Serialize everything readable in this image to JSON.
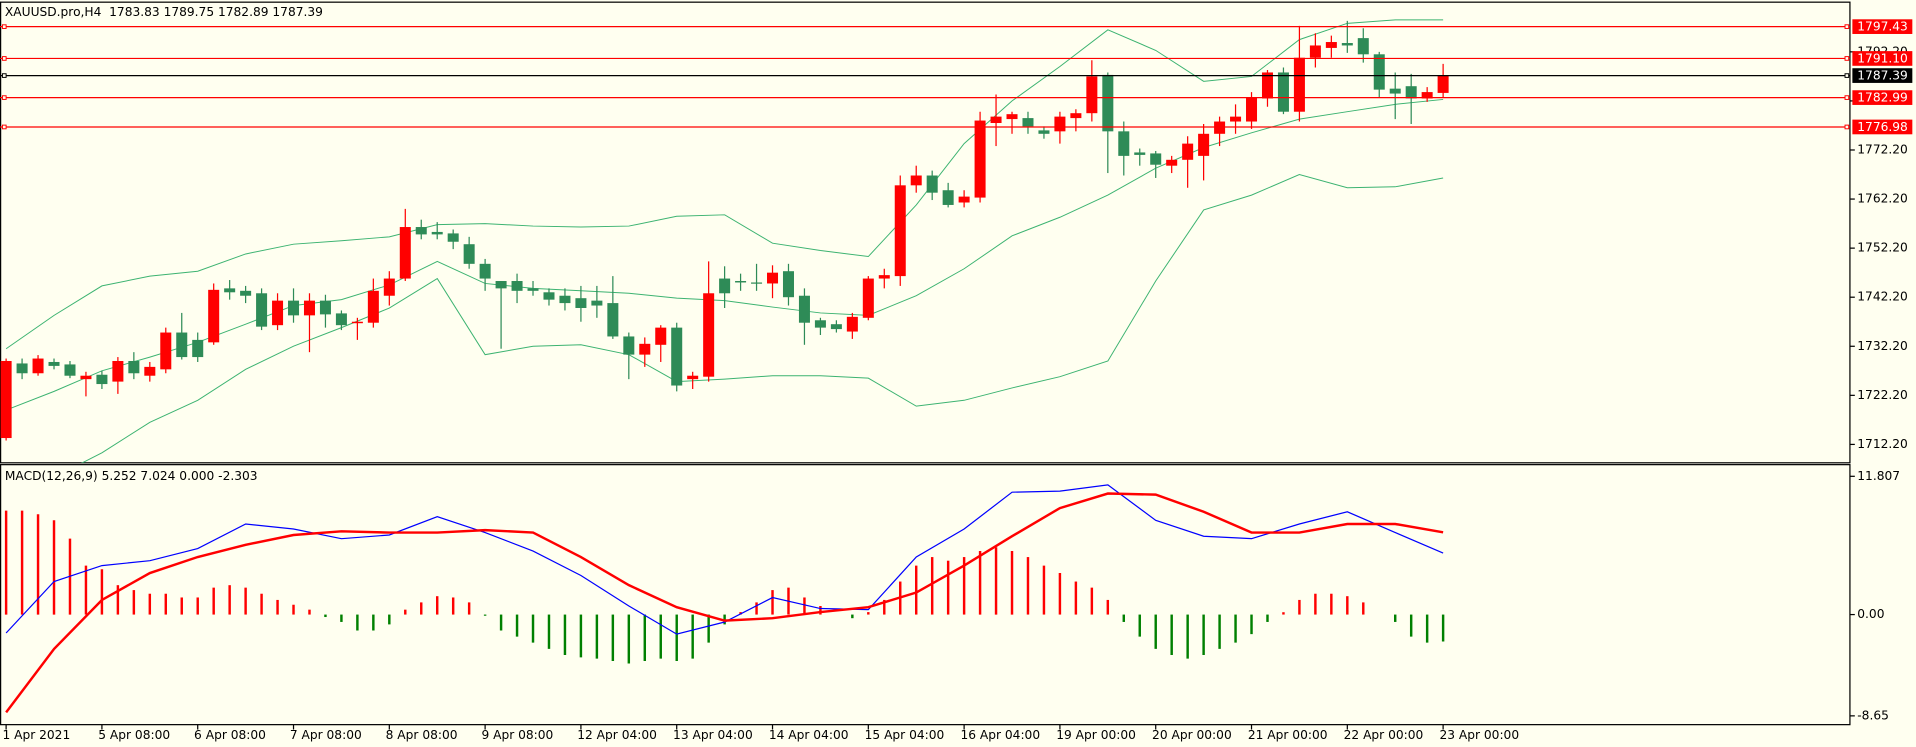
{
  "chart_data": [
    {
      "type": "candlestick",
      "title": "XAUUSD.pro,H4  1783.83 1789.75 1782.89 1787.39",
      "categories": [
        "1 Apr 2021",
        null,
        null,
        null,
        null,
        null,
        "5 Apr 08:00",
        null,
        null,
        null,
        null,
        null,
        "6 Apr 08:00",
        null,
        null,
        null,
        null,
        null,
        "7 Apr 08:00",
        null,
        null,
        null,
        null,
        null,
        "8 Apr 08:00",
        null,
        null,
        null,
        null,
        null,
        "9 Apr 08:00",
        null,
        null,
        null,
        null,
        null,
        "12 Apr 04:00",
        null,
        null,
        null,
        null,
        null,
        "13 Apr 04:00",
        null,
        null,
        null,
        null,
        null,
        "14 Apr 04:00",
        null,
        null,
        null,
        null,
        null,
        "15 Apr 04:00",
        null,
        null,
        null,
        null,
        null,
        "16 Apr 04:00",
        null,
        null,
        null,
        null,
        null,
        "19 Apr 00:00",
        null,
        null,
        null,
        null,
        null,
        "20 Apr 00:00",
        null,
        null,
        null,
        null,
        null,
        "21 Apr 00:00",
        null,
        null,
        null,
        null,
        null,
        "22 Apr 00:00",
        null,
        null,
        null,
        null,
        null,
        "23 Apr 00:00"
      ],
      "open": [
        1713.5,
        1728.7,
        1726.7,
        1729.0,
        1728.5,
        1725.5,
        1726.4,
        1725.0,
        1729.2,
        1726.2,
        1727.5,
        1735.0,
        1733.5,
        1733.0,
        1744.0,
        1743.5,
        1743.0,
        1736.5,
        1741.5,
        1738.5,
        1741.5,
        1738.9,
        1736.9,
        1737.0,
        1742.5,
        1746.0,
        1756.5,
        1755.5,
        1755.2,
        1753.0,
        1749.0,
        1745.5,
        1745.5,
        1744.0,
        1743.2,
        1742.5,
        1742.0,
        1741.5,
        1741.0,
        1734.2,
        1730.5,
        1732.5,
        1736.0,
        1725.5,
        1726.0,
        1746.0,
        1745.5,
        1745.2,
        1745.0,
        1747.5,
        1742.5,
        1737.5,
        1736.7,
        1735.2,
        1738.0,
        1746.0,
        1746.5,
        1765.0,
        1767.0,
        1764.0,
        1761.5,
        1762.5,
        1777.7,
        1778.5,
        1778.7,
        1776.2,
        1776.0,
        1778.7,
        1779.7,
        1787.5,
        1776.0,
        1771.7,
        1771.5,
        1769.0,
        1770.2,
        1771.0,
        1775.5,
        1778.0,
        1778.0,
        1782.7,
        1788.0,
        1780.0,
        1791.0,
        1793.0,
        1794.0,
        1795.0,
        1791.7,
        1784.7,
        1785.2,
        1782.7,
        1783.83
      ],
      "high": [
        1729.7,
        1729.7,
        1730.4,
        1729.7,
        1729.2,
        1727.0,
        1727.2,
        1730.0,
        1731.0,
        1729.0,
        1736.0,
        1739.0,
        1735.0,
        1745.0,
        1745.7,
        1744.5,
        1744.0,
        1743.0,
        1744.0,
        1743.0,
        1742.7,
        1739.5,
        1738.0,
        1746.0,
        1747.5,
        1760.2,
        1758.0,
        1757.5,
        1756.0,
        1754.5,
        1750.0,
        1745.5,
        1747.0,
        1745.5,
        1744.0,
        1744.0,
        1744.5,
        1744.5,
        1746.5,
        1735.0,
        1734.0,
        1736.5,
        1737.0,
        1727.0,
        1749.5,
        1748.5,
        1747.0,
        1749.0,
        1748.7,
        1749.0,
        1744.0,
        1738.0,
        1737.5,
        1739.0,
        1746.5,
        1748.0,
        1767.0,
        1769.0,
        1768.0,
        1765.5,
        1764.0,
        1780.0,
        1783.5,
        1780.0,
        1780.0,
        1777.0,
        1780.0,
        1780.5,
        1790.5,
        1788.0,
        1778.0,
        1772.5,
        1772.0,
        1771.0,
        1775.0,
        1777.5,
        1779.0,
        1781.5,
        1784.0,
        1788.5,
        1789.0,
        1797.5,
        1796.0,
        1795.5,
        1798.5,
        1797.0,
        1792.2,
        1788.0,
        1787.7,
        1785.0,
        1789.75
      ],
      "low": [
        1713.0,
        1725.5,
        1726.2,
        1727.5,
        1725.7,
        1722.0,
        1723.5,
        1722.5,
        1725.5,
        1725.0,
        1726.7,
        1729.5,
        1729.0,
        1732.5,
        1741.7,
        1741.0,
        1735.5,
        1735.5,
        1737.0,
        1731.0,
        1736.0,
        1735.5,
        1733.5,
        1736.0,
        1740.5,
        1745.5,
        1754.0,
        1754.0,
        1752.0,
        1748.0,
        1743.5,
        1731.7,
        1741.0,
        1742.5,
        1740.5,
        1739.5,
        1737.2,
        1738.0,
        1733.7,
        1725.5,
        1728.0,
        1729.0,
        1723.0,
        1723.5,
        1725.0,
        1740.0,
        1743.5,
        1743.5,
        1742.0,
        1740.5,
        1732.5,
        1734.5,
        1735.0,
        1733.7,
        1737.5,
        1744.0,
        1744.5,
        1763.5,
        1762.0,
        1760.5,
        1760.5,
        1761.5,
        1773.0,
        1775.5,
        1775.5,
        1774.5,
        1773.5,
        1776.0,
        1778.0,
        1767.5,
        1767.0,
        1769.0,
        1766.5,
        1767.5,
        1764.5,
        1766.0,
        1773.0,
        1775.5,
        1776.5,
        1781.0,
        1779.5,
        1778.0,
        1789.0,
        1791.0,
        1792.0,
        1790.0,
        1783.0,
        1778.5,
        1777.5,
        1782.0,
        1782.89
      ],
      "close": [
        1729.2,
        1726.7,
        1729.7,
        1728.2,
        1726.2,
        1726.2,
        1724.5,
        1729.2,
        1726.7,
        1728.0,
        1735.0,
        1730.0,
        1730.0,
        1743.7,
        1743.2,
        1742.5,
        1736.2,
        1741.5,
        1738.5,
        1741.5,
        1738.7,
        1736.5,
        1737.2,
        1743.5,
        1746.0,
        1756.5,
        1755.0,
        1755.0,
        1753.5,
        1749.0,
        1746.0,
        1744.0,
        1743.5,
        1743.5,
        1741.7,
        1741.0,
        1740.0,
        1740.5,
        1734.2,
        1730.5,
        1732.7,
        1736.0,
        1724.2,
        1726.2,
        1743.0,
        1743.0,
        1745.2,
        1745.0,
        1747.2,
        1742.2,
        1737.0,
        1736.0,
        1735.7,
        1738.2,
        1746.0,
        1746.7,
        1765.0,
        1767.0,
        1763.5,
        1761.0,
        1762.7,
        1778.2,
        1779.0,
        1779.5,
        1777.0,
        1775.5,
        1779.0,
        1779.7,
        1787.2,
        1776.0,
        1771.0,
        1771.2,
        1769.2,
        1770.2,
        1773.5,
        1775.5,
        1778.0,
        1779.0,
        1783.0,
        1788.0,
        1780.0,
        1791.0,
        1793.5,
        1794.2,
        1793.5,
        1791.7,
        1784.5,
        1783.7,
        1782.7,
        1784.0,
        1787.39
      ],
      "up_color": "#ff0000",
      "down_color": "#2e8b57",
      "band_x": [
        0,
        3,
        6,
        9,
        12,
        15,
        18,
        21,
        24,
        27,
        30,
        33,
        36,
        39,
        42,
        45,
        48,
        51,
        54,
        57,
        60,
        63,
        66,
        69,
        72,
        75,
        78,
        81,
        84,
        87,
        90
      ],
      "band_color": "#3cb371",
      "bands": [
        [
          1731.7,
          1738.5,
          1744.5,
          1746.5,
          1747.5,
          1751.0,
          1753.0,
          1753.7,
          1754.5,
          1757.0,
          1757.2,
          1756.7,
          1756.5,
          1756.7,
          1758.7,
          1759.0,
          1753.2,
          1751.7,
          1750.5,
          1761.0,
          1773.5,
          1782.2,
          1789.2,
          1796.7,
          1792.5,
          1786.2,
          1787.2,
          1794.7,
          1798.0,
          1798.7,
          1798.7
        ],
        [
          1719.2,
          1723.0,
          1727.2,
          1730.0,
          1733.0,
          1736.7,
          1740.5,
          1741.7,
          1744.7,
          1749.5,
          1745.0,
          1744.0,
          1743.5,
          1743.0,
          1742.0,
          1741.5,
          1740.2,
          1739.0,
          1738.5,
          1742.5,
          1748.0,
          1754.7,
          1758.5,
          1763.0,
          1768.5,
          1772.7,
          1775.7,
          1778.5,
          1780.0,
          1781.5,
          1782.5
        ],
        [
          1706.7,
          1705.5,
          1710.5,
          1716.7,
          1721.2,
          1727.5,
          1732.2,
          1736.0,
          1740.0,
          1746.0,
          1730.5,
          1732.2,
          1732.5,
          1730.5,
          1725.0,
          1725.5,
          1726.2,
          1726.2,
          1725.7,
          1720.0,
          1721.2,
          1723.7,
          1726.0,
          1729.2,
          1745.5,
          1760.0,
          1763.0,
          1767.2,
          1764.5,
          1764.7,
          1766.5
        ]
      ],
      "hlines": [
        1797.43,
        {
          "value": 1791.1,
          "label": "1791.10"
        },
        1787.39,
        1782.99,
        1776.98
      ],
      "hline_colors": [
        "#ff0000",
        "#ff0000",
        "#000000",
        "#ff0000",
        "#ff0000"
      ],
      "ylim": [
        1708.45,
        1802.2
      ],
      "yticks": [
        {
          "value": 1712.2,
          "label": "1712.20"
        },
        {
          "value": 1722.2,
          "label": "1722.20"
        },
        {
          "value": 1732.2,
          "label": "1732.20"
        },
        {
          "value": 1742.2,
          "label": "1742.20"
        },
        {
          "value": 1752.2,
          "label": "1752.20"
        },
        {
          "value": 1762.2,
          "label": "1762.20"
        },
        {
          "value": 1772.2,
          "label": "1772.20"
        },
        {
          "value": 1782.2,
          "label": "1782.20"
        },
        {
          "value": 1792.2,
          "label": "1792.20"
        }
      ]
    },
    {
      "type": "macd",
      "title": "MACD(12,26,9) 5.252 7.024 0.000 -2.303",
      "histogram": [
        8.88,
        8.88,
        8.57,
        8.05,
        6.48,
        4.18,
        3.87,
        2.51,
        2.09,
        1.78,
        1.78,
        1.46,
        1.46,
        2.3,
        2.51,
        2.3,
        1.78,
        1.25,
        0.84,
        0.42,
        -0.21,
        -0.63,
        -1.36,
        -1.36,
        -0.84,
        0.42,
        1.04,
        1.57,
        1.46,
        1.04,
        -0.1,
        -1.36,
        -1.88,
        -2.4,
        -2.93,
        -3.45,
        -3.66,
        -3.76,
        -3.97,
        -4.18,
        -3.97,
        -3.76,
        -3.97,
        -3.76,
        -2.4,
        -0.84,
        0.21,
        1.04,
        2.09,
        2.3,
        1.46,
        0.73,
        0,
        -0.31,
        0.21,
        1.25,
        2.82,
        4.18,
        4.91,
        4.6,
        4.91,
        5.43,
        5.75,
        5.43,
        4.91,
        4.18,
        3.55,
        2.82,
        2.3,
        1.25,
        -0.63,
        -1.88,
        -2.93,
        -3.45,
        -3.76,
        -3.45,
        -2.93,
        -2.4,
        -1.67,
        -0.63,
        0.2,
        1.25,
        1.78,
        1.78,
        1.57,
        1.04,
        0,
        -0.63,
        -1.88,
        -2.4,
        -2.303
      ],
      "up_color": "#ff0000",
      "down_color": "#008000",
      "line_x": [
        0,
        3,
        6,
        9,
        12,
        15,
        18,
        21,
        24,
        27,
        30,
        33,
        36,
        39,
        42,
        45,
        48,
        51,
        54,
        57,
        60,
        63,
        66,
        69,
        72,
        75,
        78,
        81,
        84,
        87,
        90
      ],
      "series": [
        {
          "color": "#0000ff",
          "values": [
            -1.57,
            2.82,
            4.18,
            4.6,
            5.64,
            7.73,
            7.31,
            6.48,
            6.79,
            8.36,
            7.0,
            5.43,
            3.34,
            0.73,
            -1.67,
            -0.63,
            1.46,
            0.52,
            0.42,
            4.91,
            7.31,
            10.45,
            10.55,
            11.08,
            8.05,
            6.69,
            6.48,
            7.73,
            8.78,
            7.0,
            5.252
          ]
        },
        {
          "color": "#ff0000",
          "values": [
            -8.36,
            -2.93,
            1.25,
            3.55,
            4.91,
            5.96,
            6.79,
            7.11,
            7.0,
            7.0,
            7.21,
            7.0,
            4.91,
            2.51,
            0.63,
            -0.52,
            -0.31,
            0.21,
            0.63,
            1.88,
            4.18,
            6.69,
            9.09,
            10.34,
            10.24,
            8.78,
            7.0,
            7.0,
            7.73,
            7.73,
            7.024
          ]
        }
      ],
      "ylim": [
        -9.4,
        12.75
      ],
      "yticks": [
        11.807,
        {
          "value": 0,
          "label": "0.00"
        },
        -8.65
      ]
    }
  ]
}
